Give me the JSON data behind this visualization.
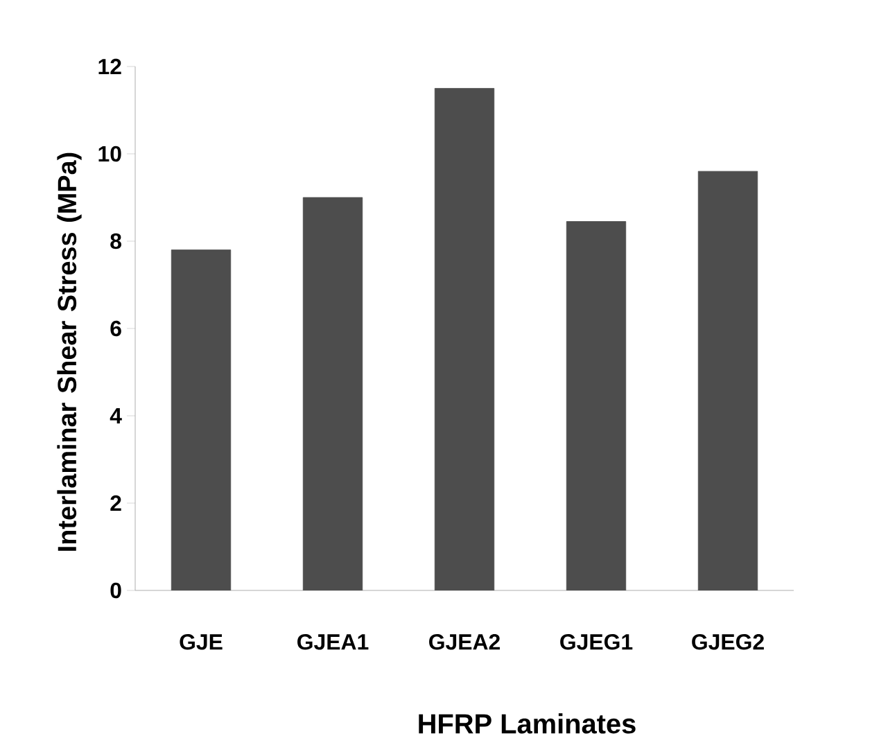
{
  "chart_data": {
    "type": "bar",
    "xlabel": "HFRP Laminates",
    "ylabel": "Interlaminar Shear Stress (MPa)",
    "categories": [
      "GJE",
      "GJEA1",
      "GJEA2",
      "GJEG1",
      "GJEG2"
    ],
    "values": [
      7.8,
      9.0,
      11.5,
      8.45,
      9.6
    ],
    "color": "#4d4d4d",
    "ylim": [
      0,
      12
    ],
    "yticks": [
      0,
      2,
      4,
      6,
      8,
      10,
      12
    ]
  }
}
